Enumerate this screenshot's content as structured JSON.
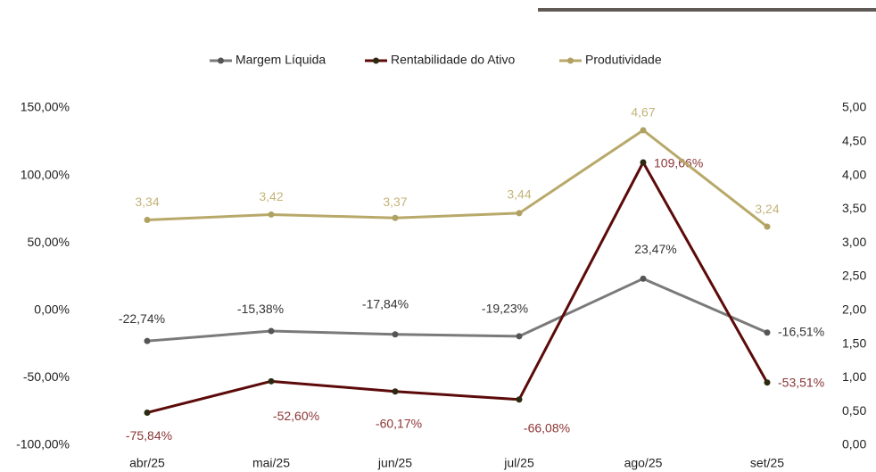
{
  "chart_data": {
    "type": "line",
    "categories": [
      "abr/25",
      "mai/25",
      "jun/25",
      "jul/25",
      "ago/25",
      "set/25"
    ],
    "series": [
      {
        "name": "Margem Líquida",
        "color": "#7a7a7a",
        "values": [
          -22.74,
          -15.38,
          -17.84,
          -19.23,
          23.47,
          -16.51
        ],
        "value_labels": [
          "-22,74%",
          "-15,38%",
          "-17,84%",
          "-19,23%",
          "23,47%",
          "-16,51%"
        ]
      },
      {
        "name": "Rentabilidade do Ativo",
        "color": "#5c0a0a",
        "values": [
          -75.84,
          -52.6,
          -60.17,
          -66.08,
          109.66,
          -53.51
        ],
        "value_labels": [
          "-75,84%",
          "-52,60%",
          "-60,17%",
          "-66,08%",
          "109,66%",
          "-53,51%"
        ]
      },
      {
        "name": "Produtividade",
        "color": "#b8a96a",
        "axis": "y2",
        "values": [
          3.34,
          3.42,
          3.37,
          3.44,
          4.67,
          3.24
        ],
        "value_labels": [
          "3,34",
          "3,42",
          "3,37",
          "3,44",
          "4,67",
          "3,24"
        ]
      }
    ],
    "ylim": [
      -100,
      150
    ],
    "yticks": [
      {
        "value": -100,
        "label": "-100,00%"
      },
      {
        "value": -50,
        "label": "-50,00%"
      },
      {
        "value": 0,
        "label": "0,00%"
      },
      {
        "value": 50,
        "label": "50,00%"
      },
      {
        "value": 100,
        "label": "100,00%"
      },
      {
        "value": 150,
        "label": "150,00%"
      }
    ],
    "y2lim": [
      0,
      5
    ],
    "y2ticks": [
      {
        "value": 0,
        "label": "0,00"
      },
      {
        "value": 0.5,
        "label": "0,50"
      },
      {
        "value": 1,
        "label": "1,00"
      },
      {
        "value": 1.5,
        "label": "1,50"
      },
      {
        "value": 2,
        "label": "2,00"
      },
      {
        "value": 2.5,
        "label": "2,50"
      },
      {
        "value": 3,
        "label": "3,00"
      },
      {
        "value": 3.5,
        "label": "3,50"
      },
      {
        "value": 4,
        "label": "4,00"
      },
      {
        "value": 4.5,
        "label": "4,50"
      },
      {
        "value": 5,
        "label": "5,00"
      }
    ],
    "legend": "top",
    "grid": false
  }
}
